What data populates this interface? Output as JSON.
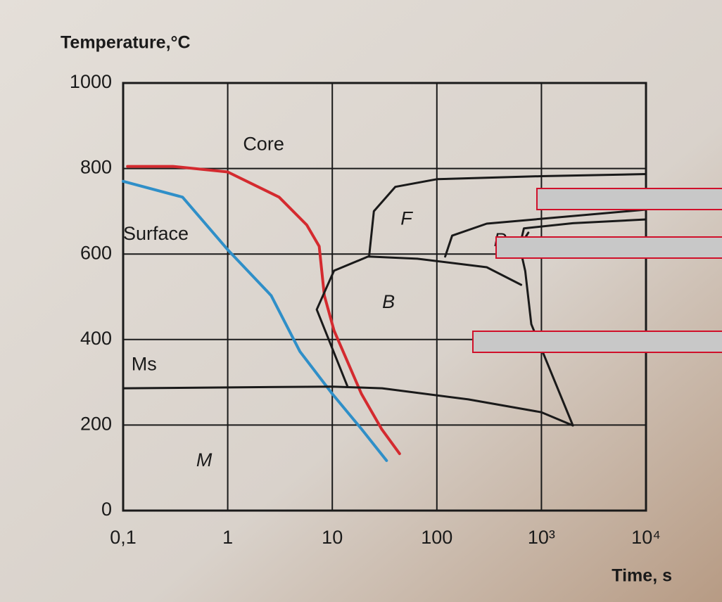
{
  "chart_data": {
    "type": "line",
    "y_label": "Temperature,°C",
    "x_label": "Time, s",
    "xscale": "log",
    "grid": true,
    "xlim": [
      0.1,
      10000
    ],
    "ylim": [
      0,
      1000
    ],
    "xticks": [
      {
        "value": 0.1,
        "label": "0,1"
      },
      1,
      10,
      100,
      {
        "value": 1000,
        "label": "10³"
      },
      {
        "value": 10000,
        "label": "10⁴"
      }
    ],
    "yticks": [
      0,
      200,
      400,
      600,
      800,
      1000
    ],
    "series": [
      {
        "name": "Core",
        "color": "#d42a2f",
        "x": [
          0.11,
          0.3,
          1,
          3.1,
          5.7,
          7.5,
          8.4,
          10.4,
          19,
          29.6,
          44
        ],
        "values": [
          805,
          805,
          792,
          733,
          668,
          618,
          503,
          421,
          273,
          191,
          133
        ]
      },
      {
        "name": "Surface",
        "color": "#2f8fc8",
        "x": [
          0.1,
          0.37,
          1,
          2.6,
          4.9,
          10,
          19,
          33
        ],
        "values": [
          770,
          733,
          610,
          503,
          372,
          273,
          191,
          117
        ]
      },
      {
        "color": "#1a1a1a",
        "x": [
          0.1,
          10,
          30,
          200,
          1000,
          2000
        ],
        "values": [
          286,
          290,
          286,
          260,
          230,
          199
        ]
      },
      {
        "color": "#1a1a1a",
        "x": [
          22.5,
          25,
          40,
          100,
          1000,
          10000
        ],
        "values": [
          594,
          700,
          757,
          775,
          782,
          787
        ]
      },
      {
        "color": "#1a1a1a",
        "x": [
          14,
          7.1,
          10.4,
          22,
          65,
          300,
          640
        ],
        "values": [
          290,
          470,
          561,
          594,
          589,
          569,
          528
        ]
      },
      {
        "color": "#1a1a1a",
        "x": [
          120,
          140,
          300,
          10000
        ],
        "values": [
          594,
          643,
          671,
          704
        ]
      },
      {
        "color": "#1a1a1a",
        "x": [
          750,
          620,
          680,
          2000,
          10000
        ],
        "values": [
          650,
          618,
          660,
          672,
          681
        ]
      },
      {
        "color": "#1a1a1a",
        "x": [
          620,
          700,
          800,
          2000
        ],
        "values": [
          618,
          560,
          436,
          199
        ]
      }
    ],
    "annotations": [
      {
        "text": "Core",
        "x": 1.4,
        "y": 855
      },
      {
        "text": "Surface",
        "x": 0.1,
        "y": 645
      },
      {
        "text": "F",
        "x": 45,
        "y": 680
      },
      {
        "text": "P",
        "x": 350,
        "y": 630
      },
      {
        "text": "B",
        "x": 30,
        "y": 485
      },
      {
        "text": "Ms",
        "x": 0.12,
        "y": 340
      },
      {
        "text": "M",
        "x": 0.5,
        "y": 115
      }
    ]
  }
}
